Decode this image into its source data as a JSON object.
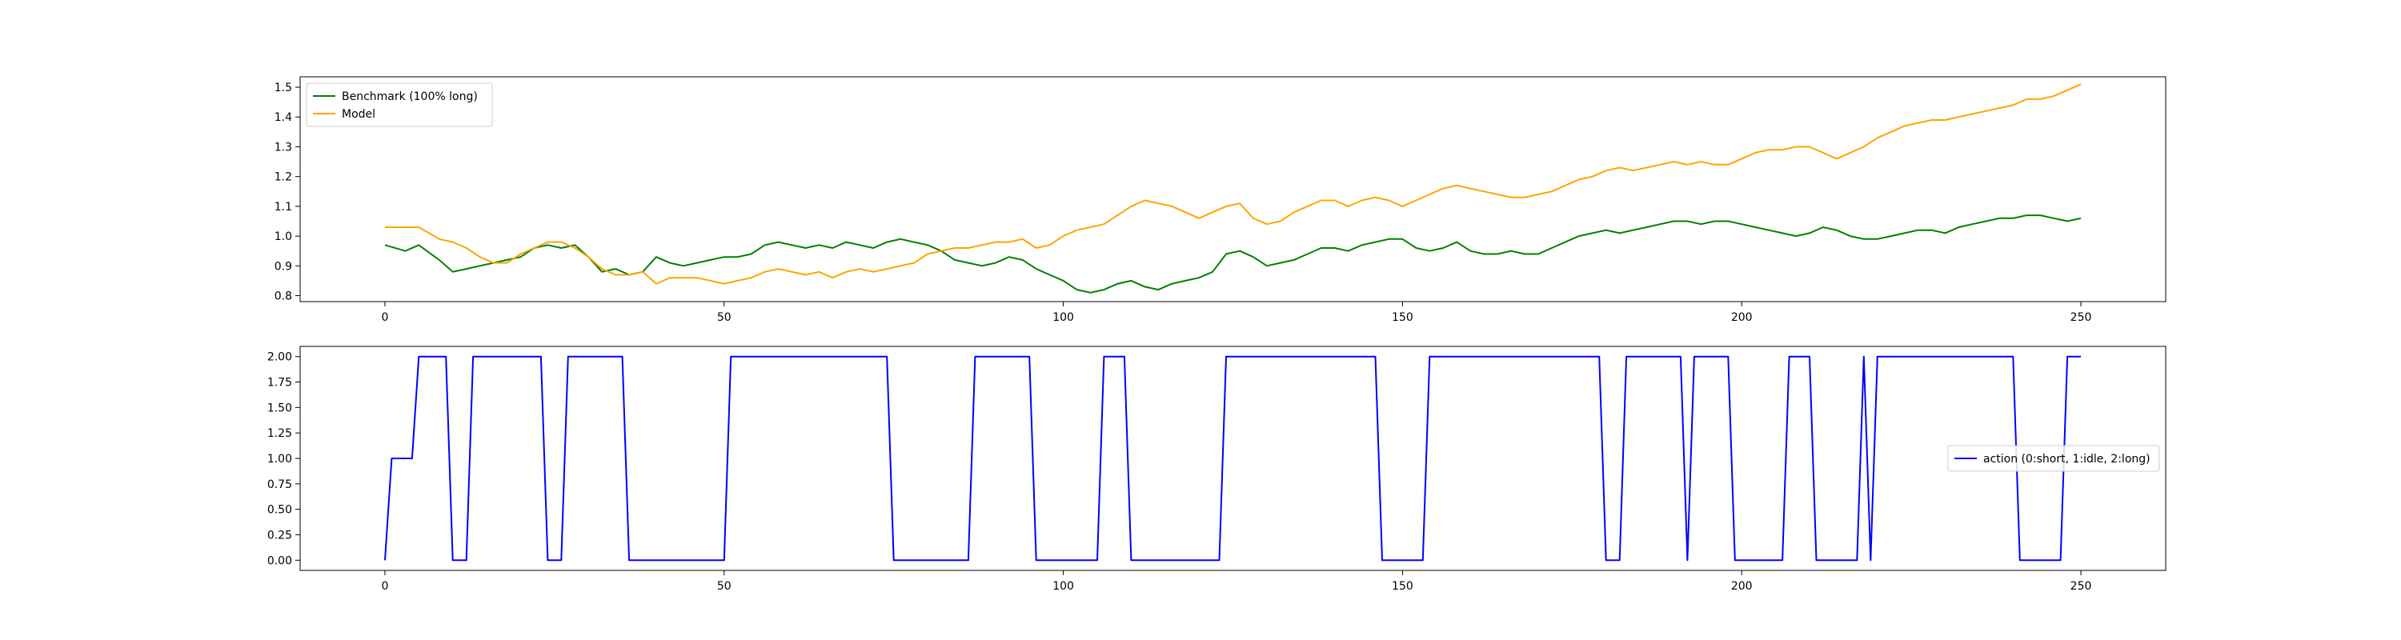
{
  "chart_data": [
    {
      "type": "line",
      "title": "",
      "xlabel": "",
      "ylabel": "",
      "xlim": [
        -12.5,
        262.5
      ],
      "ylim": [
        0.78,
        1.535
      ],
      "xticks": [
        0,
        50,
        100,
        150,
        200,
        250
      ],
      "xtick_labels": [
        "0",
        "50",
        "100",
        "150",
        "200",
        "250"
      ],
      "yticks": [
        0.8,
        0.9,
        1.0,
        1.1,
        1.2,
        1.3,
        1.4,
        1.5
      ],
      "ytick_labels": [
        "0.8",
        "0.9",
        "1.0",
        "1.1",
        "1.2",
        "1.3",
        "1.4",
        "1.5"
      ],
      "grid": false,
      "legend_position": "upper-left",
      "series": [
        {
          "name": "Benchmark (100% long)",
          "color": "#008000",
          "x": [
            0,
            3,
            5,
            8,
            10,
            12,
            14,
            16,
            18,
            20,
            22,
            24,
            26,
            28,
            30,
            32,
            34,
            36,
            38,
            40,
            42,
            44,
            46,
            48,
            50,
            52,
            54,
            56,
            58,
            60,
            62,
            64,
            66,
            68,
            70,
            72,
            74,
            76,
            78,
            80,
            82,
            84,
            86,
            88,
            90,
            92,
            94,
            96,
            98,
            100,
            102,
            104,
            106,
            108,
            110,
            112,
            114,
            116,
            118,
            120,
            122,
            124,
            126,
            128,
            130,
            132,
            134,
            136,
            138,
            140,
            142,
            144,
            146,
            148,
            150,
            152,
            154,
            156,
            158,
            160,
            162,
            164,
            166,
            168,
            170,
            172,
            174,
            176,
            178,
            180,
            182,
            184,
            186,
            188,
            190,
            192,
            194,
            196,
            198,
            200,
            202,
            204,
            206,
            208,
            210,
            212,
            214,
            216,
            218,
            220,
            222,
            224,
            226,
            228,
            230,
            232,
            234,
            236,
            238,
            240,
            242,
            244,
            246,
            248,
            250
          ],
          "values": [
            0.97,
            0.95,
            0.97,
            0.92,
            0.88,
            0.89,
            0.9,
            0.91,
            0.92,
            0.93,
            0.96,
            0.97,
            0.96,
            0.97,
            0.93,
            0.88,
            0.89,
            0.87,
            0.88,
            0.93,
            0.91,
            0.9,
            0.91,
            0.92,
            0.93,
            0.93,
            0.94,
            0.97,
            0.98,
            0.97,
            0.96,
            0.97,
            0.96,
            0.98,
            0.97,
            0.96,
            0.98,
            0.99,
            0.98,
            0.97,
            0.95,
            0.92,
            0.91,
            0.9,
            0.91,
            0.93,
            0.92,
            0.89,
            0.87,
            0.85,
            0.82,
            0.81,
            0.82,
            0.84,
            0.85,
            0.83,
            0.82,
            0.84,
            0.85,
            0.86,
            0.88,
            0.94,
            0.95,
            0.93,
            0.9,
            0.91,
            0.92,
            0.94,
            0.96,
            0.96,
            0.95,
            0.97,
            0.98,
            0.99,
            0.99,
            0.96,
            0.95,
            0.96,
            0.98,
            0.95,
            0.94,
            0.94,
            0.95,
            0.94,
            0.94,
            0.96,
            0.98,
            1.0,
            1.01,
            1.02,
            1.01,
            1.02,
            1.03,
            1.04,
            1.05,
            1.05,
            1.04,
            1.05,
            1.05,
            1.04,
            1.03,
            1.02,
            1.01,
            1.0,
            1.01,
            1.03,
            1.02,
            1.0,
            0.99,
            0.99,
            1.0,
            1.01,
            1.02,
            1.02,
            1.01,
            1.03,
            1.04,
            1.05,
            1.06,
            1.06,
            1.07,
            1.07,
            1.06,
            1.05,
            1.06
          ]
        },
        {
          "name": "Model",
          "color": "#ffa500",
          "x": [
            0,
            3,
            5,
            8,
            10,
            12,
            14,
            16,
            18,
            20,
            22,
            24,
            26,
            28,
            30,
            32,
            34,
            36,
            38,
            40,
            42,
            44,
            46,
            48,
            50,
            52,
            54,
            56,
            58,
            60,
            62,
            64,
            66,
            68,
            70,
            72,
            74,
            76,
            78,
            80,
            82,
            84,
            86,
            88,
            90,
            92,
            94,
            96,
            98,
            100,
            102,
            104,
            106,
            108,
            110,
            112,
            114,
            116,
            118,
            120,
            122,
            124,
            126,
            128,
            130,
            132,
            134,
            136,
            138,
            140,
            142,
            144,
            146,
            148,
            150,
            152,
            154,
            156,
            158,
            160,
            162,
            164,
            166,
            168,
            170,
            172,
            174,
            176,
            178,
            180,
            182,
            184,
            186,
            188,
            190,
            192,
            194,
            196,
            198,
            200,
            202,
            204,
            206,
            208,
            210,
            212,
            214,
            216,
            218,
            220,
            222,
            224,
            226,
            228,
            230,
            232,
            234,
            236,
            238,
            240,
            242,
            244,
            246,
            248,
            250
          ],
          "values": [
            1.03,
            1.03,
            1.03,
            0.99,
            0.98,
            0.96,
            0.93,
            0.91,
            0.91,
            0.94,
            0.96,
            0.98,
            0.98,
            0.96,
            0.93,
            0.89,
            0.87,
            0.87,
            0.88,
            0.84,
            0.86,
            0.86,
            0.86,
            0.85,
            0.84,
            0.85,
            0.86,
            0.88,
            0.89,
            0.88,
            0.87,
            0.88,
            0.86,
            0.88,
            0.89,
            0.88,
            0.89,
            0.9,
            0.91,
            0.94,
            0.95,
            0.96,
            0.96,
            0.97,
            0.98,
            0.98,
            0.99,
            0.96,
            0.97,
            1.0,
            1.02,
            1.03,
            1.04,
            1.07,
            1.1,
            1.12,
            1.11,
            1.1,
            1.08,
            1.06,
            1.08,
            1.1,
            1.11,
            1.06,
            1.04,
            1.05,
            1.08,
            1.1,
            1.12,
            1.12,
            1.1,
            1.12,
            1.13,
            1.12,
            1.1,
            1.12,
            1.14,
            1.16,
            1.17,
            1.16,
            1.15,
            1.14,
            1.13,
            1.13,
            1.14,
            1.15,
            1.17,
            1.19,
            1.2,
            1.22,
            1.23,
            1.22,
            1.23,
            1.24,
            1.25,
            1.24,
            1.25,
            1.24,
            1.24,
            1.26,
            1.28,
            1.29,
            1.29,
            1.3,
            1.3,
            1.28,
            1.26,
            1.28,
            1.3,
            1.33,
            1.35,
            1.37,
            1.38,
            1.39,
            1.39,
            1.4,
            1.41,
            1.42,
            1.43,
            1.44,
            1.46,
            1.46,
            1.47,
            1.49,
            1.51
          ]
        }
      ]
    },
    {
      "type": "line",
      "title": "",
      "xlabel": "",
      "ylabel": "",
      "xlim": [
        -12.5,
        262.5
      ],
      "ylim": [
        -0.1,
        2.1
      ],
      "xticks": [
        0,
        50,
        100,
        150,
        200,
        250
      ],
      "xtick_labels": [
        "0",
        "50",
        "100",
        "150",
        "200",
        "250"
      ],
      "yticks": [
        0.0,
        0.25,
        0.5,
        0.75,
        1.0,
        1.25,
        1.5,
        1.75,
        2.0
      ],
      "ytick_labels": [
        "0.00",
        "0.25",
        "0.50",
        "0.75",
        "1.00",
        "1.25",
        "1.50",
        "1.75",
        "2.00"
      ],
      "grid": false,
      "legend_position": "center-right",
      "series": [
        {
          "name": "action (0:short, 1:idle, 2:long)",
          "color": "#0000ff",
          "x": [
            0,
            1,
            4,
            5,
            9,
            10,
            12,
            13,
            23,
            24,
            26,
            27,
            35,
            36,
            50,
            51,
            74,
            75,
            86,
            87,
            95,
            96,
            105,
            106,
            109,
            110,
            123,
            124,
            146,
            147,
            153,
            154,
            179,
            180,
            182,
            183,
            191,
            192,
            193,
            198,
            199,
            206,
            207,
            210,
            211,
            217,
            218,
            219,
            220,
            240,
            241,
            247,
            248,
            250
          ],
          "values": [
            0,
            1,
            1,
            2,
            2,
            0,
            0,
            2,
            2,
            0,
            0,
            2,
            2,
            0,
            0,
            2,
            2,
            0,
            0,
            2,
            2,
            0,
            0,
            2,
            2,
            0,
            0,
            2,
            2,
            0,
            0,
            2,
            2,
            0,
            0,
            2,
            2,
            0,
            2,
            2,
            0,
            0,
            2,
            2,
            0,
            0,
            2,
            0,
            2,
            2,
            0,
            0,
            2,
            2
          ]
        }
      ]
    }
  ]
}
